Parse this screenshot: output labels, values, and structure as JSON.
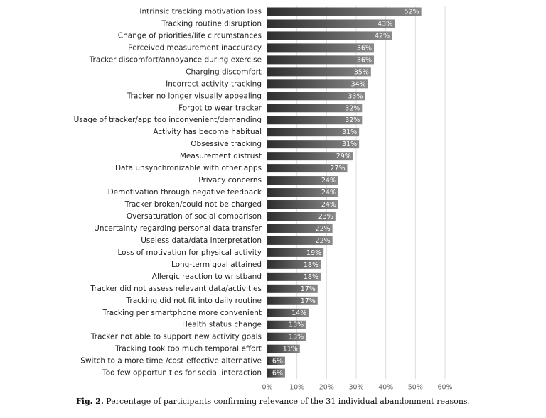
{
  "chart_data": {
    "type": "bar",
    "orientation": "horizontal",
    "categories": [
      "Intrinsic tracking motivation loss",
      "Tracking routine disruption",
      "Change of priorities/life circumstances",
      "Perceived measurement inaccuracy",
      "Tracker discomfort/annoyance during exercise",
      "Charging discomfort",
      "Incorrect activity tracking",
      "Tracker no longer visually appealing",
      "Forgot to wear tracker",
      "Usage of tracker/app too inconvenient/demanding",
      "Activity has become habitual",
      "Obsessive tracking",
      "Measurement distrust",
      "Data unsynchronizable with other apps",
      "Privacy concerns",
      "Demotivation through negative feedback",
      "Tracker broken/could not be charged",
      "Oversaturation of social comparison",
      "Uncertainty regarding personal data transfer",
      "Useless data/data interpretation",
      "Loss of motivation for physical activity",
      "Long-term goal attained",
      "Allergic reaction to wristband",
      "Tracker did not assess relevant data/activities",
      "Tracking did not fit into daily routine",
      "Tracking per smartphone more convenient",
      "Health status change",
      "Tracker not able to support new activity goals",
      "Tracking took too much temporal effort",
      "Switch to a more time-/cost-effective alternative",
      "Too few opportunities for social interaction"
    ],
    "values": [
      52,
      43,
      42,
      36,
      36,
      35,
      34,
      33,
      32,
      32,
      31,
      31,
      29,
      27,
      24,
      24,
      24,
      23,
      22,
      22,
      19,
      18,
      18,
      17,
      17,
      14,
      13,
      13,
      11,
      6,
      6
    ],
    "value_labels": [
      "52%",
      "43%",
      "42%",
      "36%",
      "36%",
      "35%",
      "34%",
      "33%",
      "32%",
      "32%",
      "31%",
      "31%",
      "29%",
      "27%",
      "24%",
      "24%",
      "24%",
      "23%",
      "22%",
      "22%",
      "19%",
      "18%",
      "18%",
      "17%",
      "17%",
      "14%",
      "13%",
      "13%",
      "11%",
      "6%",
      "6%"
    ],
    "color": "#8a8a8a",
    "gradient_start": "#2e2e2e",
    "xlim": [
      0,
      60
    ],
    "xticks": [
      {
        "value": 0,
        "label": "0%"
      },
      {
        "value": 10,
        "label": "10%"
      },
      {
        "value": 20,
        "label": "20%"
      },
      {
        "value": 30,
        "label": "30%"
      },
      {
        "value": 40,
        "label": "40%"
      },
      {
        "value": 50,
        "label": "50%"
      },
      {
        "value": 60,
        "label": "60%"
      }
    ],
    "grid": true,
    "caption_label": "Fig. 2.",
    "caption": "Percentage of participants confirming relevance of the 31 individual abandonment reasons."
  }
}
